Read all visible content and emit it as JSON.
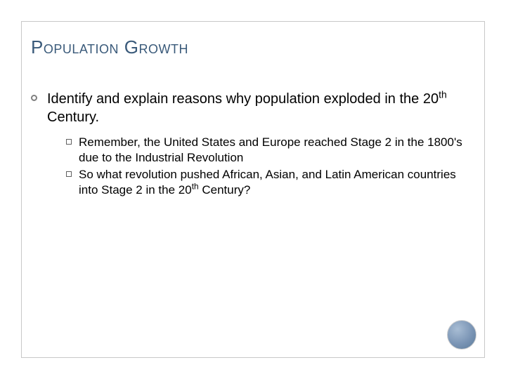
{
  "slide": {
    "title": "Population Growth",
    "title_color": "#3a5a7a",
    "title_fontsize": 26,
    "border_color": "#c8c8c8",
    "background_color": "#ffffff",
    "mainBullet": {
      "text_before": "Identify and explain reasons why population exploded in the 20",
      "sup": "th",
      "text_after": " Century.",
      "fontsize": 20,
      "marker_color": "#808080"
    },
    "subBullets": [
      {
        "text": "Remember, the United States and Europe reached Stage 2 in the 1800's due to the Industrial Revolution"
      },
      {
        "text_before": "So what revolution pushed African, Asian, and Latin American countries into Stage 2 in the 20",
        "sup": "th",
        "text_after": " Century?"
      }
    ],
    "sub_fontsize": 17,
    "sub_marker_color": "#606060",
    "corner_circle": {
      "gradient_light": "#a8bdd4",
      "gradient_mid": "#7b95b5",
      "gradient_dark": "#5a7a9a",
      "size": 42
    }
  }
}
